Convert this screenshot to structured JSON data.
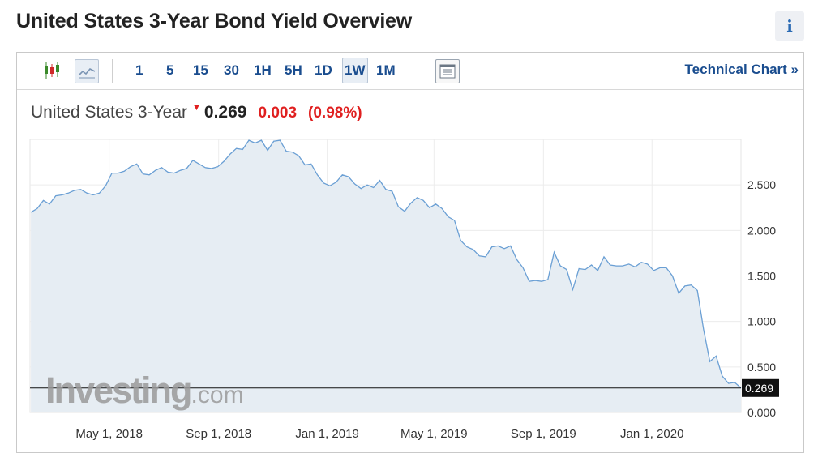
{
  "page": {
    "title": "United States 3-Year Bond Yield Overview",
    "info_icon": "i"
  },
  "toolbar": {
    "timeframes": [
      "1",
      "5",
      "15",
      "30",
      "1H",
      "5H",
      "1D",
      "1W",
      "1M"
    ],
    "active_timeframe": "1W",
    "technical_chart_label": "Technical Chart »",
    "icons": [
      "candlestick-icon",
      "line-chart-icon",
      "table-icon"
    ]
  },
  "quote": {
    "name": "United States 3-Year",
    "direction_icon": "down-arrow-icon",
    "last": "0.269",
    "change": "0.003",
    "change_pct": "(0.98%)"
  },
  "watermark": {
    "brand": "Investing",
    "suffix": ".com"
  },
  "colors": {
    "line": "#6a9fd4",
    "area": "#e6edf3",
    "down": "#e02020",
    "link": "#1a4d8f"
  },
  "chart_data": {
    "type": "area",
    "title": "",
    "xlabel": "",
    "ylabel": "",
    "x_tick_labels": [
      "May 1, 2018",
      "Sep 1, 2018",
      "Jan 1, 2019",
      "May 1, 2019",
      "Sep 1, 2019",
      "Jan 1, 2020"
    ],
    "x_range": [
      "2018-02-01",
      "2020-04-10"
    ],
    "y_ticks": [
      "0.000",
      "0.500",
      "1.000",
      "1.500",
      "2.000",
      "2.500"
    ],
    "ylim": [
      0,
      3.0
    ],
    "last_value_label": "0.269",
    "reference_line": 0.269,
    "grid": true,
    "series": [
      {
        "values": [
          [
            "2018-02-02",
            2.2
          ],
          [
            "2018-02-09",
            2.24
          ],
          [
            "2018-02-16",
            2.33
          ],
          [
            "2018-02-23",
            2.29
          ],
          [
            "2018-03-02",
            2.38
          ],
          [
            "2018-03-09",
            2.39
          ],
          [
            "2018-03-16",
            2.41
          ],
          [
            "2018-03-23",
            2.44
          ],
          [
            "2018-03-30",
            2.45
          ],
          [
            "2018-04-06",
            2.41
          ],
          [
            "2018-04-13",
            2.39
          ],
          [
            "2018-04-20",
            2.41
          ],
          [
            "2018-04-27",
            2.49
          ],
          [
            "2018-05-04",
            2.63
          ],
          [
            "2018-05-11",
            2.63
          ],
          [
            "2018-05-18",
            2.65
          ],
          [
            "2018-05-25",
            2.7
          ],
          [
            "2018-06-01",
            2.73
          ],
          [
            "2018-06-08",
            2.62
          ],
          [
            "2018-06-15",
            2.61
          ],
          [
            "2018-06-22",
            2.66
          ],
          [
            "2018-06-29",
            2.69
          ],
          [
            "2018-07-06",
            2.64
          ],
          [
            "2018-07-13",
            2.63
          ],
          [
            "2018-07-20",
            2.66
          ],
          [
            "2018-07-27",
            2.68
          ],
          [
            "2018-08-03",
            2.77
          ],
          [
            "2018-08-10",
            2.73
          ],
          [
            "2018-08-17",
            2.69
          ],
          [
            "2018-08-24",
            2.68
          ],
          [
            "2018-08-31",
            2.7
          ],
          [
            "2018-09-07",
            2.76
          ],
          [
            "2018-09-14",
            2.84
          ],
          [
            "2018-09-21",
            2.9
          ],
          [
            "2018-09-28",
            2.89
          ],
          [
            "2018-10-05",
            2.99
          ],
          [
            "2018-10-12",
            2.96
          ],
          [
            "2018-10-19",
            2.99
          ],
          [
            "2018-10-26",
            2.88
          ],
          [
            "2018-11-02",
            2.98
          ],
          [
            "2018-11-09",
            2.99
          ],
          [
            "2018-11-16",
            2.87
          ],
          [
            "2018-11-23",
            2.86
          ],
          [
            "2018-11-30",
            2.82
          ],
          [
            "2018-12-07",
            2.72
          ],
          [
            "2018-12-14",
            2.73
          ],
          [
            "2018-12-21",
            2.61
          ],
          [
            "2018-12-28",
            2.52
          ],
          [
            "2019-01-04",
            2.49
          ],
          [
            "2019-01-11",
            2.53
          ],
          [
            "2019-01-18",
            2.61
          ],
          [
            "2019-01-25",
            2.59
          ],
          [
            "2019-02-01",
            2.51
          ],
          [
            "2019-02-08",
            2.46
          ],
          [
            "2019-02-15",
            2.5
          ],
          [
            "2019-02-22",
            2.47
          ],
          [
            "2019-03-01",
            2.55
          ],
          [
            "2019-03-08",
            2.45
          ],
          [
            "2019-03-15",
            2.43
          ],
          [
            "2019-03-22",
            2.26
          ],
          [
            "2019-03-29",
            2.21
          ],
          [
            "2019-04-05",
            2.3
          ],
          [
            "2019-04-12",
            2.36
          ],
          [
            "2019-04-19",
            2.33
          ],
          [
            "2019-04-26",
            2.25
          ],
          [
            "2019-05-03",
            2.29
          ],
          [
            "2019-05-10",
            2.24
          ],
          [
            "2019-05-17",
            2.15
          ],
          [
            "2019-05-24",
            2.11
          ],
          [
            "2019-05-31",
            1.89
          ],
          [
            "2019-06-07",
            1.82
          ],
          [
            "2019-06-14",
            1.79
          ],
          [
            "2019-06-21",
            1.72
          ],
          [
            "2019-06-28",
            1.71
          ],
          [
            "2019-07-05",
            1.82
          ],
          [
            "2019-07-12",
            1.83
          ],
          [
            "2019-07-19",
            1.8
          ],
          [
            "2019-07-26",
            1.83
          ],
          [
            "2019-08-02",
            1.68
          ],
          [
            "2019-08-09",
            1.59
          ],
          [
            "2019-08-16",
            1.44
          ],
          [
            "2019-08-23",
            1.45
          ],
          [
            "2019-08-30",
            1.44
          ],
          [
            "2019-09-06",
            1.46
          ],
          [
            "2019-09-13",
            1.76
          ],
          [
            "2019-09-20",
            1.61
          ],
          [
            "2019-09-27",
            1.57
          ],
          [
            "2019-10-04",
            1.35
          ],
          [
            "2019-10-11",
            1.58
          ],
          [
            "2019-10-18",
            1.57
          ],
          [
            "2019-10-25",
            1.62
          ],
          [
            "2019-11-01",
            1.56
          ],
          [
            "2019-11-08",
            1.71
          ],
          [
            "2019-11-15",
            1.62
          ],
          [
            "2019-11-22",
            1.61
          ],
          [
            "2019-11-29",
            1.61
          ],
          [
            "2019-12-06",
            1.63
          ],
          [
            "2019-12-13",
            1.6
          ],
          [
            "2019-12-20",
            1.65
          ],
          [
            "2019-12-27",
            1.63
          ],
          [
            "2020-01-03",
            1.56
          ],
          [
            "2020-01-10",
            1.59
          ],
          [
            "2020-01-17",
            1.59
          ],
          [
            "2020-01-24",
            1.5
          ],
          [
            "2020-01-31",
            1.31
          ],
          [
            "2020-02-07",
            1.39
          ],
          [
            "2020-02-14",
            1.4
          ],
          [
            "2020-02-21",
            1.34
          ],
          [
            "2020-02-28",
            0.91
          ],
          [
            "2020-03-06",
            0.56
          ],
          [
            "2020-03-13",
            0.62
          ],
          [
            "2020-03-20",
            0.4
          ],
          [
            "2020-03-27",
            0.32
          ],
          [
            "2020-04-03",
            0.33
          ],
          [
            "2020-04-10",
            0.27
          ]
        ]
      }
    ]
  }
}
